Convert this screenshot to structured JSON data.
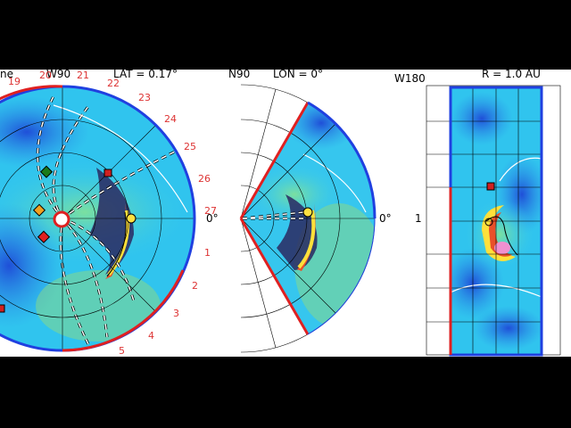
{
  "panels": {
    "latitude": {
      "title": "LAT = 0.17°",
      "top_left": "ne",
      "top_center": "W90",
      "zero_label": "0°"
    },
    "longitude": {
      "title": "LON = 0°",
      "top_left": "N90",
      "zero_label": "0°"
    },
    "radius": {
      "title": "R = 1.0 AU",
      "top_left": "W180",
      "side_label": "1"
    }
  },
  "carrington_ticks": [
    "19",
    "20",
    "21",
    "22",
    "23",
    "24",
    "25",
    "26",
    "27",
    "1",
    "2",
    "3",
    "4",
    "5"
  ],
  "colors": {
    "frame_red": "#e02020",
    "frame_blue": "#2040e0",
    "fill_cyan": "#33c8f0",
    "fill_green": "#6fd39a"
  }
}
